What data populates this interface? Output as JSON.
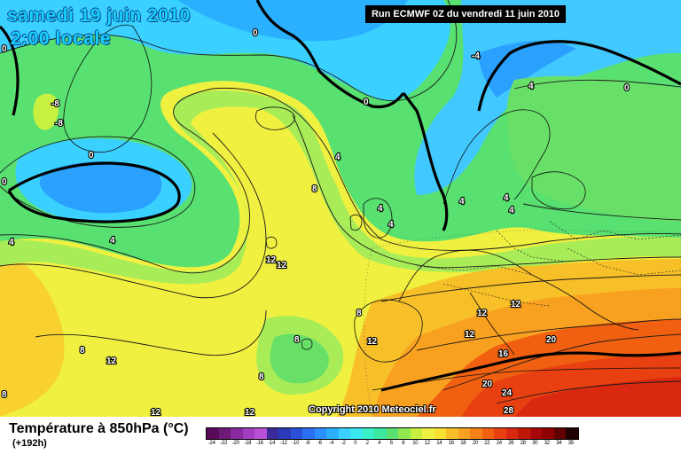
{
  "header": {
    "date_line1": "samedi 19 juin 2010",
    "date_line2": "2:00 locale",
    "run_info": "Run ECMWF 0Z du vendredi 11 juin 2010"
  },
  "footer": {
    "parameter_title": "Température à 850hPa (°C)",
    "lead_time": "(+192h)",
    "copyright": "Copyright 2010 Meteociel.fr"
  },
  "legend": {
    "labels": [
      "-24",
      "-22",
      "-20",
      "-18",
      "-16",
      "-14",
      "-12",
      "-10",
      "-8",
      "-6",
      "-4",
      "-2",
      "0",
      "2",
      "4",
      "6",
      "8",
      "10",
      "12",
      "14",
      "16",
      "18",
      "20",
      "22",
      "24",
      "26",
      "28",
      "30",
      "32",
      "34",
      "35"
    ],
    "colors": [
      "#5a0a5a",
      "#6e1a78",
      "#8a2aa0",
      "#a23cc0",
      "#b850d8",
      "#3a2a9a",
      "#2a3ab8",
      "#2a50d8",
      "#2a70f0",
      "#2a90ff",
      "#2ab0ff",
      "#3ad0ff",
      "#3ae8f0",
      "#3af0c8",
      "#3ae8a0",
      "#5ae070",
      "#90e850",
      "#c8f040",
      "#f0f040",
      "#f8e030",
      "#f8c028",
      "#f8a020",
      "#f88018",
      "#f06010",
      "#e84010",
      "#d82810",
      "#c01808",
      "#a80808",
      "#900000",
      "#600000",
      "#200000"
    ]
  },
  "map_labels": [
    {
      "text": "0"
    },
    {
      "text": "0"
    },
    {
      "text": "0"
    },
    {
      "text": "0"
    },
    {
      "text": "0"
    },
    {
      "text": "-4"
    },
    {
      "text": "4"
    },
    {
      "text": "4"
    },
    {
      "text": "4"
    },
    {
      "text": "4"
    },
    {
      "text": "4"
    },
    {
      "text": "4"
    },
    {
      "text": "4"
    },
    {
      "text": "4"
    },
    {
      "text": "4"
    },
    {
      "text": "-8"
    },
    {
      "text": "-8"
    },
    {
      "text": "8"
    },
    {
      "text": "8"
    },
    {
      "text": "8"
    },
    {
      "text": "8"
    },
    {
      "text": "8"
    },
    {
      "text": "12"
    },
    {
      "text": "12"
    },
    {
      "text": "12"
    },
    {
      "text": "12"
    },
    {
      "text": "12"
    },
    {
      "text": "12"
    },
    {
      "text": "12"
    },
    {
      "text": "12"
    },
    {
      "text": "12"
    },
    {
      "text": "16"
    },
    {
      "text": "20"
    },
    {
      "text": "20"
    },
    {
      "text": "24"
    },
    {
      "text": "28"
    },
    {
      "text": "0"
    },
    {
      "text": "8"
    }
  ]
}
